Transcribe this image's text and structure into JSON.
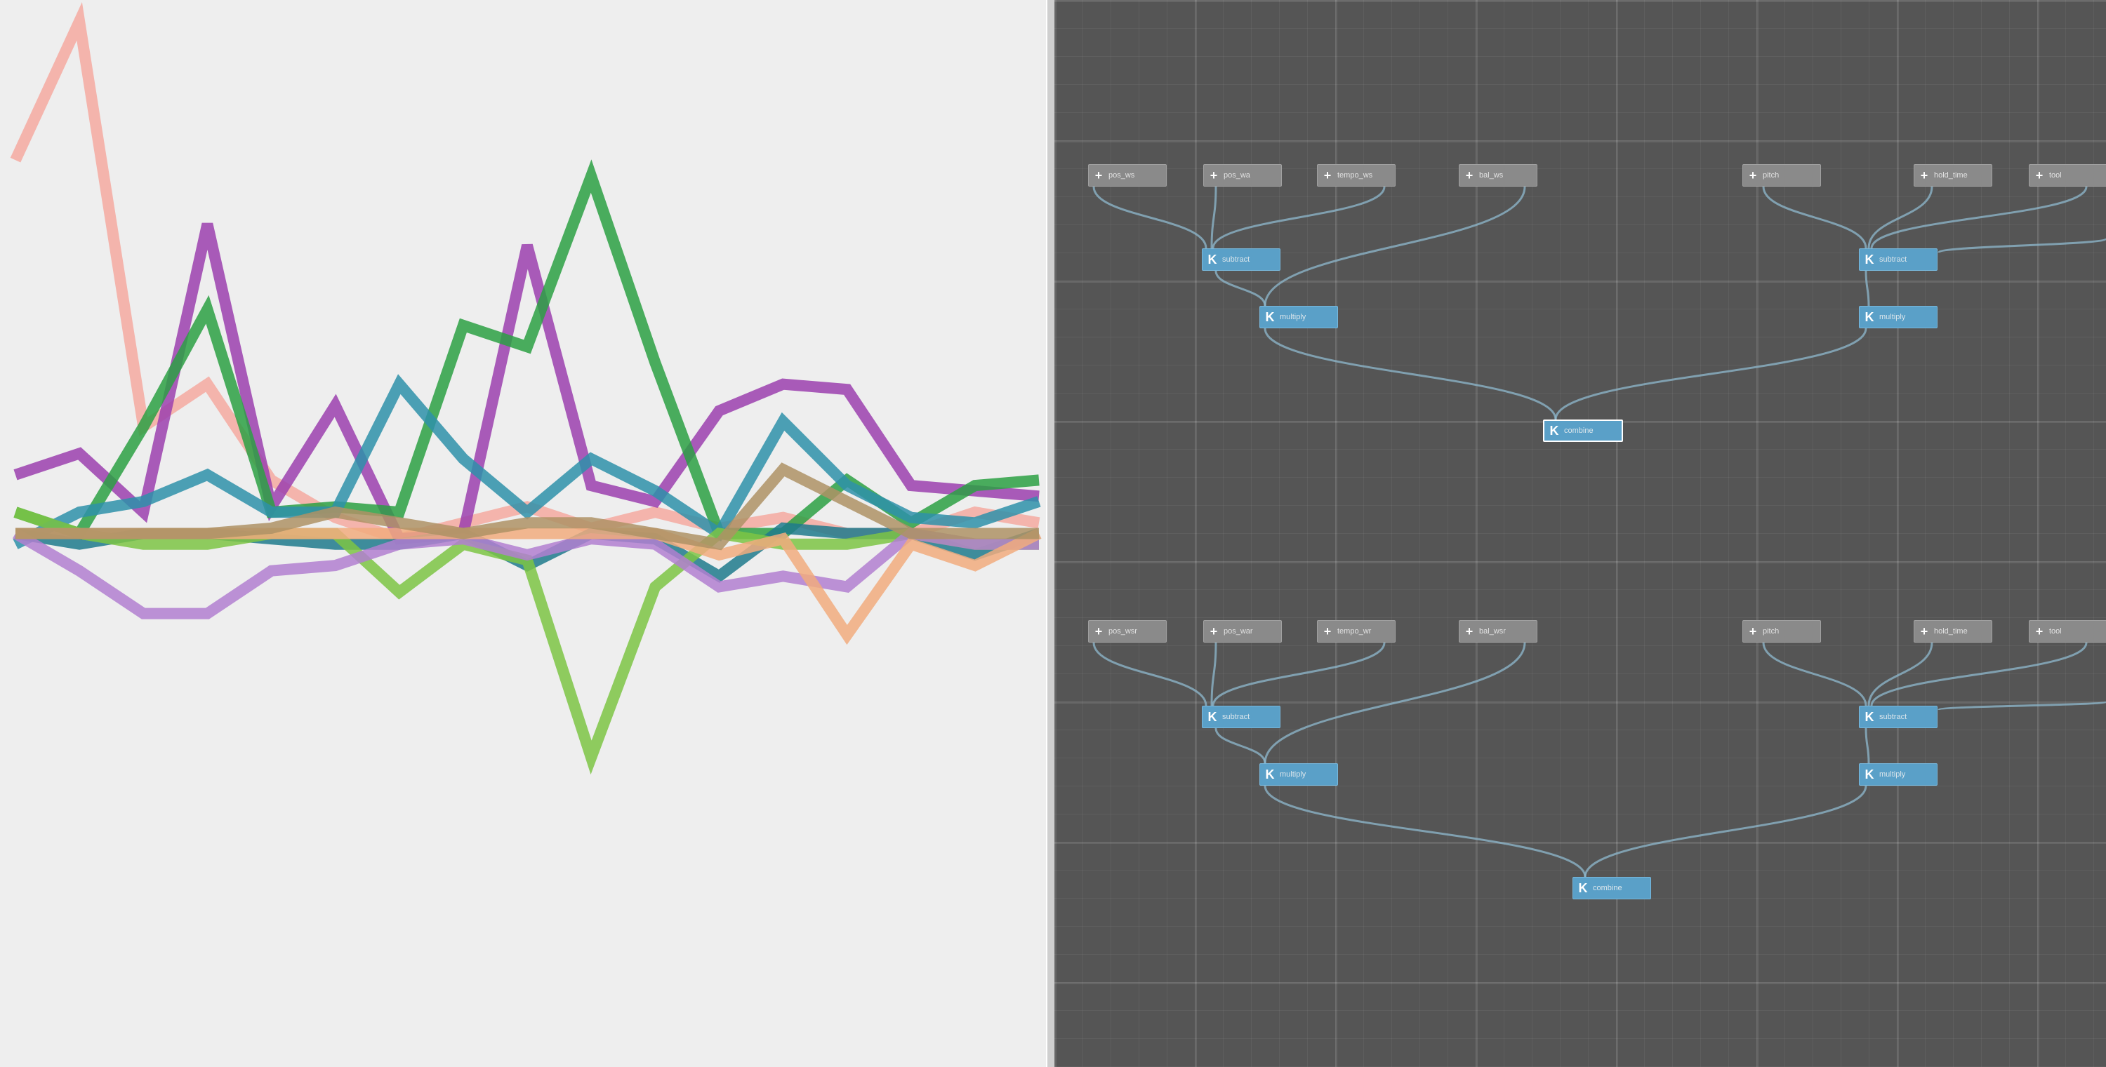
{
  "colors": {
    "plot_background": "#eeeeee",
    "graph_background": "#555555",
    "input_node": "#8a8a8a",
    "operator_node": "#5aa0c8",
    "wire": "#8fb9cf"
  },
  "chart_data": {
    "type": "line",
    "x": [
      0,
      1,
      2,
      3,
      4,
      5,
      6,
      7,
      8,
      9,
      10,
      11,
      12,
      13,
      14,
      15,
      16
    ],
    "ylim": [
      -1,
      1
    ],
    "grid": false,
    "legend": "none",
    "series": [
      {
        "color": "#f4a9a0",
        "values": [
          0.7,
          0.96,
          0.2,
          0.28,
          0.1,
          0.03,
          -0.01,
          0.02,
          0.05,
          0.01,
          0.04,
          0.01,
          0.03,
          0.0,
          0.0,
          0.04,
          0.02
        ]
      },
      {
        "color": "#9b3fae",
        "values": [
          0.11,
          0.15,
          0.04,
          0.58,
          0.05,
          0.24,
          -0.01,
          0.0,
          0.54,
          0.09,
          0.06,
          0.23,
          0.28,
          0.27,
          0.09,
          0.08,
          0.07
        ]
      },
      {
        "color": "#2ca043",
        "values": [
          0.04,
          0.0,
          0.2,
          0.42,
          0.04,
          0.05,
          0.04,
          0.39,
          0.35,
          0.67,
          0.32,
          0.0,
          0.0,
          0.1,
          0.02,
          0.09,
          0.1
        ]
      },
      {
        "color": "#2e90a9",
        "values": [
          -0.02,
          0.04,
          0.06,
          0.11,
          0.04,
          0.04,
          0.28,
          0.14,
          0.04,
          0.14,
          0.08,
          0.0,
          0.21,
          0.09,
          0.03,
          0.02,
          0.06
        ]
      },
      {
        "color": "#1f7a8c",
        "values": [
          0.0,
          -0.02,
          0.0,
          0.0,
          -0.01,
          -0.02,
          -0.02,
          0.0,
          -0.06,
          0.0,
          -0.01,
          -0.08,
          0.01,
          0.0,
          0.0,
          -0.04,
          0.0
        ]
      },
      {
        "color": "#7dc444",
        "values": [
          0.04,
          0.0,
          -0.02,
          -0.02,
          0.0,
          0.0,
          -0.11,
          -0.02,
          -0.05,
          -0.42,
          -0.1,
          0.0,
          -0.02,
          -0.02,
          0.0,
          -0.02,
          -0.02
        ]
      },
      {
        "color": "#b27fd0",
        "values": [
          0.0,
          -0.07,
          -0.15,
          -0.15,
          -0.07,
          -0.06,
          -0.02,
          -0.01,
          -0.04,
          -0.01,
          -0.02,
          -0.1,
          -0.08,
          -0.1,
          0.0,
          -0.02,
          -0.02
        ]
      },
      {
        "color": "#f1ac7e",
        "values": [
          0.0,
          0.0,
          0.0,
          0.0,
          0.0,
          0.0,
          0.0,
          0.0,
          0.0,
          0.0,
          0.0,
          -0.04,
          -0.01,
          -0.19,
          -0.02,
          -0.06,
          0.0
        ]
      },
      {
        "color": "#ae9265",
        "values": [
          0.0,
          0.0,
          0.0,
          0.0,
          0.01,
          0.04,
          0.02,
          0.0,
          0.02,
          0.02,
          0.0,
          -0.02,
          0.12,
          0.06,
          0.0,
          0.0,
          0.0
        ]
      }
    ]
  },
  "graph": {
    "groups": [
      {
        "inputs": [
          {
            "label": "pos_ws"
          },
          {
            "label": "pos_wa"
          },
          {
            "label": "tempo_ws"
          },
          {
            "label": "bal_ws"
          },
          {
            "label": "pitch"
          },
          {
            "label": "hold_time"
          },
          {
            "label": "tool"
          }
        ],
        "operators": [
          {
            "label": "subtract"
          },
          {
            "label": "multiply"
          },
          {
            "label": "subtract"
          },
          {
            "label": "multiply"
          },
          {
            "label": "combine"
          }
        ]
      },
      {
        "inputs": [
          {
            "label": "pos_wsr"
          },
          {
            "label": "pos_war"
          },
          {
            "label": "tempo_wr"
          },
          {
            "label": "bal_wsr"
          },
          {
            "label": "pitch"
          },
          {
            "label": "hold_time"
          },
          {
            "label": "tool"
          }
        ],
        "operators": [
          {
            "label": "subtract"
          },
          {
            "label": "multiply"
          },
          {
            "label": "subtract"
          },
          {
            "label": "multiply"
          },
          {
            "label": "combine"
          }
        ]
      }
    ]
  }
}
